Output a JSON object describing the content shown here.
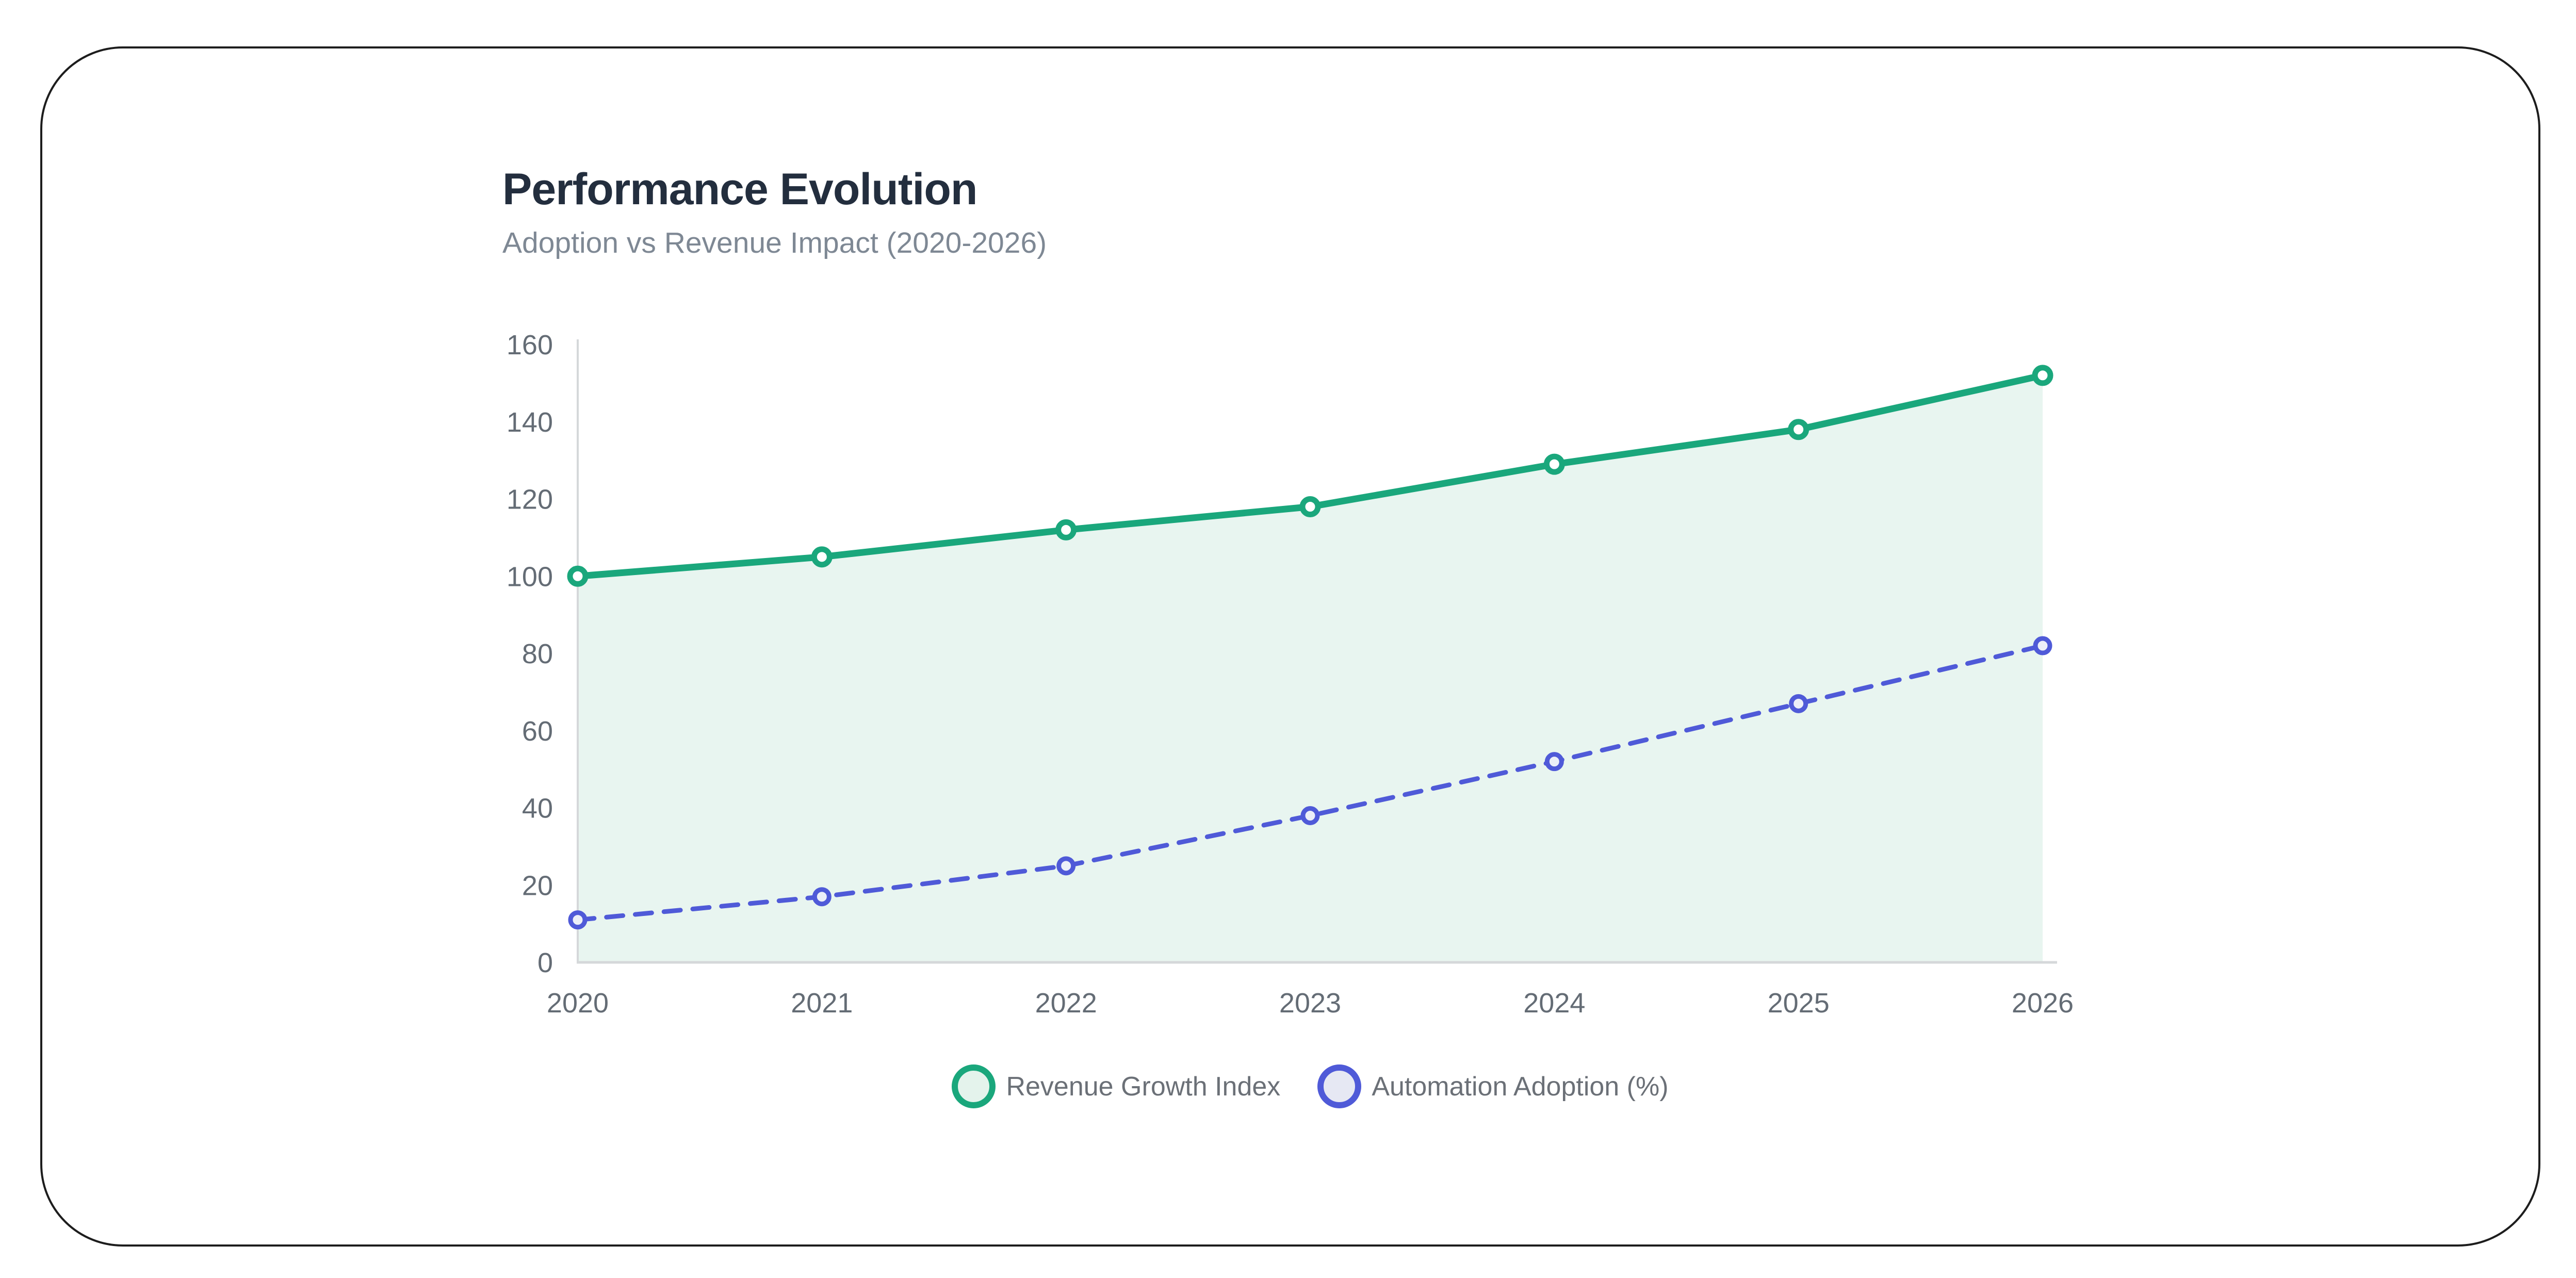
{
  "header": {
    "title": "Performance Evolution",
    "subtitle": "Adoption vs Revenue Impact (2020-2026)"
  },
  "chart_data": {
    "type": "line",
    "title": "Performance Evolution",
    "subtitle": "Adoption vs Revenue Impact (2020-2026)",
    "categories": [
      "2020",
      "2021",
      "2022",
      "2023",
      "2024",
      "2025",
      "2026"
    ],
    "series": [
      {
        "name": "Revenue Growth Index",
        "values": [
          100,
          105,
          112,
          118,
          129,
          138,
          152
        ],
        "color": "#1aa77c",
        "line_style": "solid",
        "marker_fill": "#ffffff",
        "area_fill": "#e8f5f0",
        "legend_fill": "#e4f3ec"
      },
      {
        "name": "Automation Adoption (%)",
        "values": [
          11,
          17,
          25,
          38,
          52,
          67,
          82
        ],
        "color": "#4f5ad8",
        "line_style": "dashed",
        "marker_fill": "#eceff8",
        "area_fill": null,
        "legend_fill": "#e6e8f3"
      }
    ],
    "xlabel": "",
    "ylabel": "",
    "ylim": [
      0,
      160
    ],
    "yticks": [
      0,
      20,
      40,
      60,
      80,
      100,
      120,
      140,
      160
    ],
    "grid": false,
    "legend_position": "bottom",
    "axis_color": "#d5d8da",
    "tick_color": "#646c75"
  },
  "palette": {
    "title_color": "#232e3e",
    "subtitle_color": "#7e8894",
    "frame_border": "#1d1d1d",
    "legend_text_color": "#6b7077",
    "background": "#ffffff"
  }
}
